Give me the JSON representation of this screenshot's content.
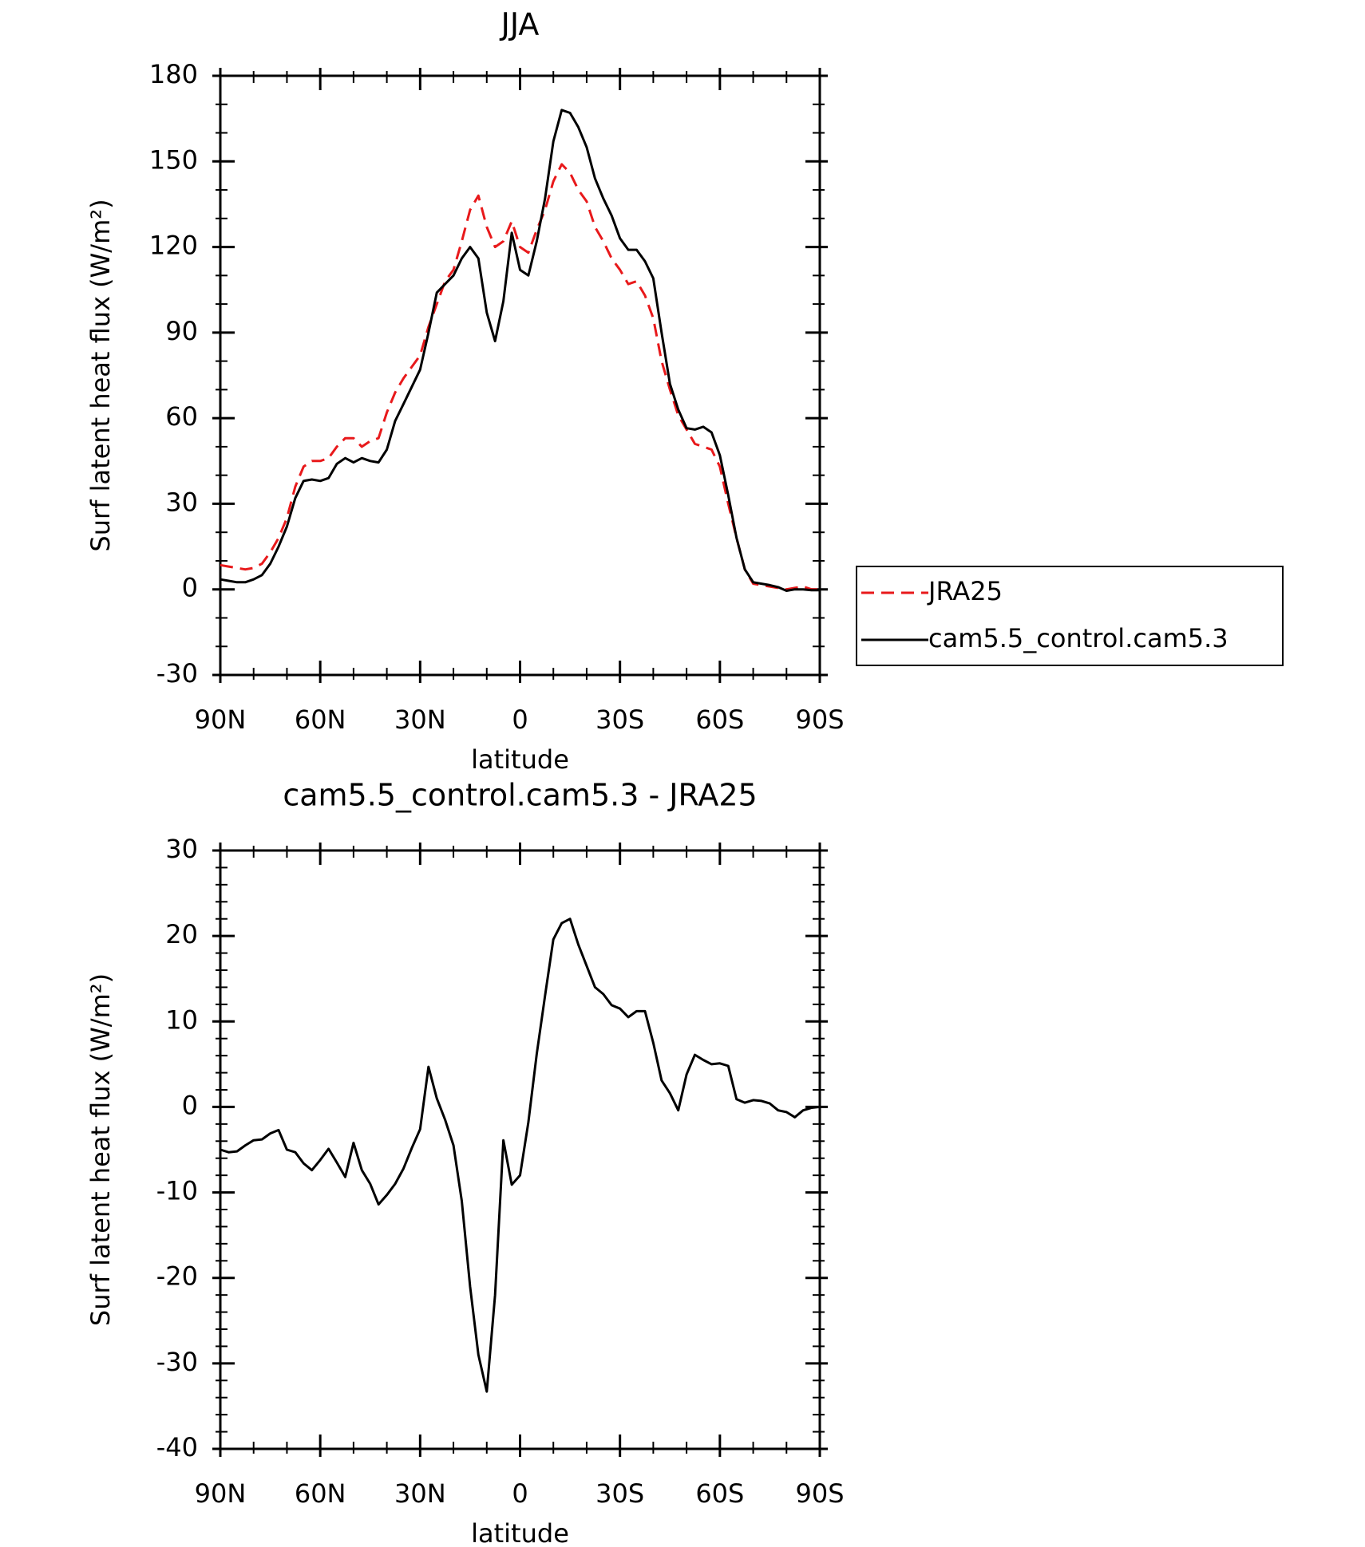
{
  "chart_data": [
    {
      "type": "line",
      "title": "JJA",
      "xlabel": "latitude",
      "ylabel": "Surf latent heat flux (W/m²)",
      "x": [
        90,
        87.5,
        85,
        82.5,
        80,
        77.5,
        75,
        72.5,
        70,
        67.5,
        65,
        62.5,
        60,
        57.5,
        55,
        52.5,
        50,
        47.5,
        45,
        42.5,
        40,
        37.5,
        35,
        32.5,
        30,
        27.5,
        25,
        22.5,
        20,
        17.5,
        15,
        12.5,
        10,
        7.5,
        5,
        2.5,
        0,
        -2.5,
        -5,
        -7.5,
        -10,
        -12.5,
        -15,
        -17.5,
        -20,
        -22.5,
        -25,
        -27.5,
        -30,
        -32.5,
        -35,
        -37.5,
        -40,
        -42.5,
        -45,
        -47.5,
        -50,
        -52.5,
        -55,
        -57.5,
        -60,
        -62.5,
        -65,
        -67.5,
        -70,
        -72.5,
        -75,
        -77.5,
        -80,
        -82.5,
        -85,
        -87.5,
        -90
      ],
      "series": [
        {
          "name": "JRA25",
          "color": "#e8191b",
          "dash": true,
          "values": [
            8.5,
            8,
            7.5,
            7,
            7.5,
            9,
            13,
            18,
            25,
            36,
            43,
            45,
            45,
            46,
            50,
            53,
            53,
            50,
            52,
            53,
            62,
            69,
            74,
            78,
            82,
            92,
            100,
            108,
            112,
            122,
            133,
            138,
            127,
            120,
            122,
            129,
            120,
            118,
            126,
            133,
            143,
            149,
            146,
            140,
            136,
            127,
            122,
            116,
            112,
            107,
            108,
            103,
            95,
            80,
            70,
            61,
            56,
            51,
            50,
            49,
            43,
            30,
            18,
            7,
            2,
            1.5,
            1,
            0.5,
            0,
            0.5,
            1,
            0,
            0
          ]
        },
        {
          "name": "cam5.5_control.cam5.3",
          "color": "#000000",
          "dash": false,
          "values": [
            3.5,
            3,
            2.5,
            2.5,
            3.5,
            5,
            9,
            15,
            22,
            32,
            38,
            38.5,
            38,
            39,
            44,
            46,
            44.5,
            46,
            45,
            44.5,
            49,
            59,
            65,
            71,
            77,
            90,
            104,
            107,
            110,
            116,
            120,
            116,
            97,
            87,
            101,
            125,
            112,
            110,
            122,
            137,
            157,
            168,
            167,
            162,
            155,
            144,
            137,
            131,
            123,
            119,
            119,
            115,
            109,
            90,
            72,
            63,
            56.5,
            56,
            57,
            55,
            47,
            33,
            18,
            7,
            2.5,
            2,
            1.5,
            0.8,
            -0.5,
            0,
            0,
            -0.3,
            -0.3
          ]
        }
      ],
      "xlim": [
        90,
        -90
      ],
      "xticks": [
        {
          "value": 90,
          "label": "90N"
        },
        {
          "value": 60,
          "label": "60N"
        },
        {
          "value": 30,
          "label": "30N"
        },
        0,
        {
          "value": -30,
          "label": "30S"
        },
        {
          "value": -60,
          "label": "60S"
        },
        {
          "value": -90,
          "label": "90S"
        }
      ],
      "ylim": [
        -30,
        180
      ],
      "yticks": [
        -30,
        0,
        30,
        60,
        90,
        120,
        150,
        180
      ],
      "legend": "right"
    },
    {
      "type": "line",
      "title": "cam5.5_control.cam5.3 - JRA25",
      "xlabel": "latitude",
      "ylabel": "Surf latent heat flux (W/m²)",
      "x": [
        90,
        87.5,
        85,
        82.5,
        80,
        77.5,
        75,
        72.5,
        70,
        67.5,
        65,
        62.5,
        60,
        57.5,
        55,
        52.5,
        50,
        47.5,
        45,
        42.5,
        40,
        37.5,
        35,
        32.5,
        30,
        27.5,
        25,
        22.5,
        20,
        17.5,
        15,
        12.5,
        10,
        7.5,
        5,
        2.5,
        0,
        -2.5,
        -5,
        -7.5,
        -10,
        -12.5,
        -15,
        -17.5,
        -20,
        -22.5,
        -25,
        -27.5,
        -30,
        -32.5,
        -35,
        -37.5,
        -40,
        -42.5,
        -45,
        -47.5,
        -50,
        -52.5,
        -55,
        -57.5,
        -60,
        -62.5,
        -65,
        -67.5,
        -70,
        -72.5,
        -75,
        -77.5,
        -80,
        -82.5,
        -85,
        -87.5,
        -90
      ],
      "color": "#000000",
      "values": [
        -5,
        -5.3,
        -5.2,
        -4.5,
        -3.9,
        -3.8,
        -3.1,
        -2.7,
        -5,
        -5.3,
        -6.6,
        -7.4,
        -6.2,
        -4.9,
        -6.5,
        -8.2,
        -4.2,
        -7.4,
        -9,
        -11.4,
        -10.3,
        -9,
        -7.2,
        -4.8,
        -2.6,
        4.7,
        1,
        -1.5,
        -4.5,
        -11,
        -21,
        -29,
        -33.3,
        -22,
        -3.9,
        -9.1,
        -8,
        -1.8,
        6.2,
        13,
        19.6,
        21.5,
        22,
        19,
        16.5,
        14,
        13.2,
        11.9,
        11.5,
        10.5,
        11.2,
        11.2,
        7.5,
        3.1,
        1.6,
        -0.4,
        3.8,
        6.1,
        5.5,
        5,
        5.1,
        4.8,
        0.9,
        0.5,
        0.8,
        0.7,
        0.4,
        -0.4,
        -0.6,
        -1.2,
        -0.4,
        -0.1,
        0
      ],
      "xlim": [
        90,
        -90
      ],
      "xticks": [
        {
          "value": 90,
          "label": "90N"
        },
        {
          "value": 60,
          "label": "60N"
        },
        {
          "value": 30,
          "label": "30N"
        },
        0,
        {
          "value": -30,
          "label": "30S"
        },
        {
          "value": -60,
          "label": "60S"
        },
        {
          "value": -90,
          "label": "90S"
        }
      ],
      "ylim": [
        -40,
        30
      ],
      "yticks": [
        -40,
        -30,
        -20,
        -10,
        0,
        10,
        20,
        30
      ]
    }
  ]
}
